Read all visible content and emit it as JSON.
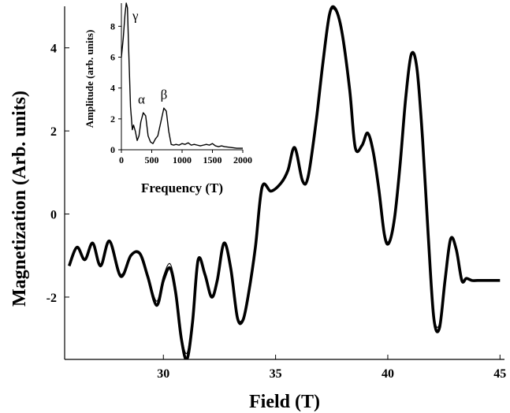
{
  "chart_data": [
    {
      "type": "line",
      "title": "",
      "xlabel": "Field (T)",
      "ylabel": "Magnetization (Arb. units)",
      "xlim": [
        25.6,
        45.2
      ],
      "ylim": [
        -3.5,
        5.0
      ],
      "xticks": [
        30,
        35,
        40,
        45
      ],
      "yticks": [
        -2,
        0,
        2,
        4
      ],
      "grid": false,
      "series": [
        {
          "style": "thick",
          "x": [
            25.8,
            26.15,
            26.5,
            26.85,
            27.2,
            27.6,
            28.1,
            28.55,
            28.95,
            29.3,
            29.7,
            30.0,
            30.3,
            30.55,
            30.8,
            31.05,
            31.3,
            31.55,
            31.85,
            32.15,
            32.4,
            32.7,
            33.0,
            33.3,
            33.55,
            33.8,
            34.1,
            34.4,
            34.8,
            35.25,
            35.55,
            35.85,
            36.2,
            36.45,
            36.8,
            37.1,
            37.4,
            37.65,
            37.95,
            38.3,
            38.55,
            38.85,
            39.1,
            39.35,
            39.6,
            39.85,
            40.05,
            40.3,
            40.55,
            40.8,
            41.05,
            41.3,
            41.55,
            41.8,
            42.05,
            42.3,
            42.55,
            42.8,
            43.05,
            43.3,
            43.5,
            43.75,
            44.0,
            44.25,
            44.5,
            44.75,
            45.0
          ],
          "y": [
            -1.25,
            -0.8,
            -1.1,
            -0.7,
            -1.25,
            -0.65,
            -1.5,
            -1.0,
            -0.95,
            -1.5,
            -2.2,
            -1.6,
            -1.3,
            -1.9,
            -3.0,
            -3.5,
            -2.6,
            -1.1,
            -1.45,
            -2.0,
            -1.6,
            -0.7,
            -1.3,
            -2.5,
            -2.55,
            -1.9,
            -0.8,
            0.65,
            0.55,
            0.75,
            1.05,
            1.6,
            0.8,
            0.9,
            2.2,
            3.6,
            4.8,
            4.95,
            4.4,
            3.0,
            1.6,
            1.65,
            1.95,
            1.5,
            0.6,
            -0.5,
            -0.7,
            -0.1,
            1.2,
            2.8,
            3.85,
            3.5,
            1.8,
            -0.5,
            -2.5,
            -2.75,
            -1.6,
            -0.6,
            -0.85,
            -1.6,
            -1.55,
            -1.6,
            -1.6,
            -1.6,
            -1.6,
            -1.6,
            -1.6
          ]
        },
        {
          "style": "thin",
          "x": [
            25.8,
            26.15,
            26.5,
            26.85,
            27.2,
            27.6,
            28.1,
            28.55,
            28.95,
            29.3,
            29.7,
            30.0,
            30.3,
            30.55,
            30.8,
            31.05,
            31.3,
            31.55,
            31.85,
            32.15,
            32.4,
            32.7,
            33.0,
            33.3,
            33.55,
            33.8,
            34.1,
            34.4,
            34.8,
            35.25,
            35.55,
            35.85,
            36.2,
            36.45,
            36.8,
            37.1,
            37.4,
            37.65,
            37.95,
            38.3,
            38.55,
            38.85,
            39.1,
            39.35,
            39.6,
            39.85,
            40.05,
            40.3,
            40.55,
            40.8,
            41.05,
            41.3,
            41.55,
            41.8,
            42.05,
            42.3,
            42.55,
            42.8
          ],
          "y": [
            -1.2,
            -0.78,
            -1.08,
            -0.72,
            -1.2,
            -0.68,
            -1.45,
            -1.0,
            -0.98,
            -1.45,
            -2.1,
            -1.5,
            -1.2,
            -1.8,
            -2.9,
            -3.35,
            -2.5,
            -1.1,
            -1.4,
            -1.95,
            -1.6,
            -0.72,
            -1.3,
            -2.45,
            -2.5,
            -1.85,
            -0.8,
            0.62,
            0.55,
            0.72,
            1.05,
            1.58,
            0.8,
            0.9,
            2.2,
            3.55,
            4.75,
            4.9,
            4.35,
            3.0,
            1.62,
            1.66,
            1.95,
            1.5,
            0.62,
            -0.45,
            -0.65,
            -0.1,
            1.2,
            2.78,
            3.8,
            3.48,
            1.8,
            -0.45,
            -2.4,
            -2.65,
            -1.55,
            -0.6
          ]
        }
      ]
    },
    {
      "type": "line",
      "title": "",
      "xlabel": "Frequency (T)",
      "ylabel": "Amplitude (arb. units)",
      "xlim": [
        0,
        2000
      ],
      "ylim": [
        0,
        9.5
      ],
      "xticks": [
        0,
        500,
        1000,
        1500,
        2000
      ],
      "yticks": [
        0,
        2,
        4,
        6,
        8
      ],
      "annotations": [
        {
          "text": "γ",
          "x": 100,
          "y": 8.8
        },
        {
          "text": "α",
          "x": 330,
          "y": 3.0
        },
        {
          "text": "β",
          "x": 700,
          "y": 3.3
        }
      ],
      "series": [
        {
          "x": [
            0,
            30,
            60,
            80,
            100,
            120,
            150,
            180,
            200,
            230,
            260,
            290,
            320,
            360,
            400,
            440,
            480,
            520,
            560,
            600,
            650,
            700,
            740,
            780,
            820,
            860,
            900,
            950,
            1000,
            1050,
            1100,
            1150,
            1200,
            1250,
            1300,
            1350,
            1400,
            1450,
            1500,
            1550,
            1600,
            1650,
            1700,
            1800,
            1900,
            2000
          ],
          "y": [
            6.0,
            7.2,
            8.8,
            9.5,
            9.2,
            6.5,
            2.8,
            1.3,
            1.6,
            1.2,
            0.6,
            0.9,
            1.8,
            2.4,
            2.2,
            0.9,
            0.5,
            0.4,
            0.7,
            0.9,
            1.8,
            2.7,
            2.5,
            1.2,
            0.35,
            0.3,
            0.35,
            0.3,
            0.4,
            0.35,
            0.45,
            0.3,
            0.35,
            0.3,
            0.25,
            0.3,
            0.35,
            0.3,
            0.4,
            0.25,
            0.2,
            0.25,
            0.2,
            0.15,
            0.1,
            0.1
          ]
        }
      ]
    }
  ]
}
